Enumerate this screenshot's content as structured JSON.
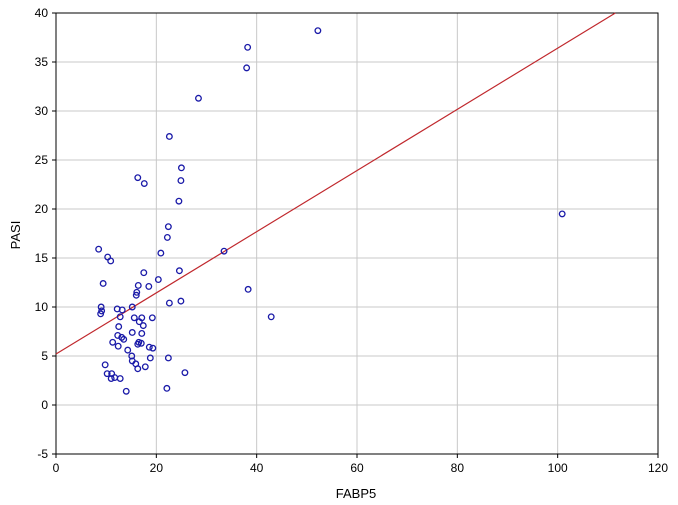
{
  "chart_data": {
    "type": "scatter",
    "title": "",
    "xlabel": "FABP5",
    "ylabel": "PASI",
    "xlim": [
      0,
      120
    ],
    "ylim": [
      -5,
      40
    ],
    "xticks": [
      "0",
      "20",
      "40",
      "60",
      "80",
      "100",
      "120"
    ],
    "yticks": [
      "-5",
      "0",
      "5",
      "10",
      "15",
      "20",
      "25",
      "30",
      "35",
      "40"
    ],
    "grid": true,
    "legend": "none",
    "colors": {
      "points": "#1a1aa8",
      "fit_line": "#c0282d",
      "grid": "#c8c8c8"
    },
    "series": [
      {
        "points": [
          [
            52.2,
            38.2
          ],
          [
            38.2,
            36.5
          ],
          [
            38.0,
            34.4
          ],
          [
            28.4,
            31.3
          ],
          [
            22.6,
            27.4
          ],
          [
            25.0,
            24.2
          ],
          [
            16.3,
            23.2
          ],
          [
            17.6,
            22.6
          ],
          [
            24.9,
            22.9
          ],
          [
            24.5,
            20.8
          ],
          [
            22.4,
            18.2
          ],
          [
            22.2,
            17.1
          ],
          [
            8.5,
            15.9
          ],
          [
            20.9,
            15.5
          ],
          [
            10.3,
            15.1
          ],
          [
            10.9,
            14.7
          ],
          [
            33.5,
            15.7
          ],
          [
            17.5,
            13.5
          ],
          [
            24.6,
            13.7
          ],
          [
            20.4,
            12.8
          ],
          [
            9.4,
            12.4
          ],
          [
            16.4,
            12.2
          ],
          [
            18.5,
            12.1
          ],
          [
            16.1,
            11.5
          ],
          [
            16.0,
            11.2
          ],
          [
            38.3,
            11.8
          ],
          [
            22.6,
            10.4
          ],
          [
            24.9,
            10.6
          ],
          [
            9.0,
            10.0
          ],
          [
            9.1,
            9.6
          ],
          [
            8.9,
            9.3
          ],
          [
            12.2,
            9.8
          ],
          [
            13.2,
            9.7
          ],
          [
            15.2,
            10.0
          ],
          [
            15.6,
            8.9
          ],
          [
            12.8,
            9.0
          ],
          [
            17.1,
            8.9
          ],
          [
            16.6,
            8.5
          ],
          [
            19.2,
            8.9
          ],
          [
            42.9,
            9.0
          ],
          [
            12.5,
            8.0
          ],
          [
            17.4,
            8.1
          ],
          [
            15.2,
            7.4
          ],
          [
            17.1,
            7.3
          ],
          [
            12.3,
            7.1
          ],
          [
            13.1,
            6.9
          ],
          [
            13.5,
            6.7
          ],
          [
            16.5,
            6.4
          ],
          [
            11.3,
            6.4
          ],
          [
            17.0,
            6.3
          ],
          [
            16.3,
            6.2
          ],
          [
            12.4,
            6.0
          ],
          [
            18.6,
            5.9
          ],
          [
            19.3,
            5.8
          ],
          [
            14.3,
            5.6
          ],
          [
            15.1,
            5.0
          ],
          [
            18.8,
            4.8
          ],
          [
            22.4,
            4.8
          ],
          [
            15.2,
            4.5
          ],
          [
            15.9,
            4.2
          ],
          [
            9.8,
            4.1
          ],
          [
            17.8,
            3.9
          ],
          [
            16.3,
            3.7
          ],
          [
            25.7,
            3.3
          ],
          [
            10.2,
            3.2
          ],
          [
            11.1,
            3.2
          ],
          [
            11.7,
            2.8
          ],
          [
            11.0,
            2.7
          ],
          [
            12.8,
            2.7
          ],
          [
            22.1,
            1.7
          ],
          [
            14.0,
            1.4
          ],
          [
            100.9,
            19.5
          ]
        ]
      }
    ],
    "fit_line": {
      "x": [
        0,
        111.5
      ],
      "y": [
        5.2,
        40
      ]
    }
  }
}
